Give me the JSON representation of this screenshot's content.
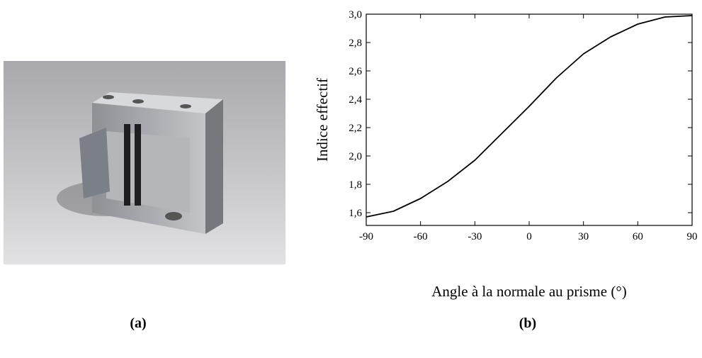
{
  "captions": [
    "(a)",
    "(b)"
  ],
  "chart_data": {
    "type": "line",
    "x_label": "Angle à la normale au prisme (°)",
    "y_label": "Indice effectif",
    "x": [
      -90,
      -75,
      -60,
      -45,
      -30,
      -15,
      0,
      15,
      30,
      45,
      60,
      75,
      90
    ],
    "values": [
      1.57,
      1.61,
      1.7,
      1.82,
      1.97,
      2.16,
      2.35,
      2.55,
      2.72,
      2.84,
      2.93,
      2.98,
      2.99
    ],
    "color": "#000000",
    "xlim": [
      -90,
      90
    ],
    "xticks": [
      -90,
      -60,
      -30,
      0,
      30,
      60,
      90
    ],
    "ylim": [
      1.51,
      3.0
    ],
    "yticks": [
      {
        "value": 1.6,
        "label": "1,6"
      },
      {
        "value": 1.8,
        "label": "1,8"
      },
      {
        "value": 2.0,
        "label": "2,0"
      },
      {
        "value": 2.2,
        "label": "2,2"
      },
      {
        "value": 2.4,
        "label": "2,4"
      },
      {
        "value": 2.6,
        "label": "2,6"
      },
      {
        "value": 2.8,
        "label": "2,8"
      },
      {
        "value": 3.0,
        "label": "3,0"
      }
    ]
  }
}
